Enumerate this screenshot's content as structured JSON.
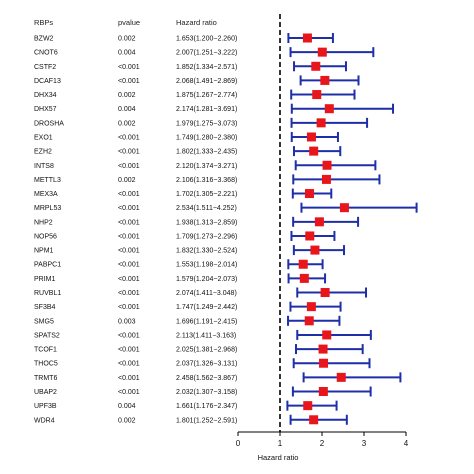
{
  "chart_data": {
    "type": "forest",
    "xlabel": "Hazard ratio",
    "reference_line": 1,
    "xlim": [
      0,
      4
    ],
    "xticks": [
      0,
      1,
      2,
      3,
      4
    ],
    "headers": {
      "rbp": "RBPs",
      "pvalue": "pvalue",
      "hr": "Hazard ratio"
    },
    "colors": {
      "ci": "#1f2fa8",
      "point": "#e8151b",
      "reference": "#000000"
    },
    "rows": [
      {
        "rbp": "BZW2",
        "pvalue": "0.002",
        "hr_text": "1.653(1.200−2.260)",
        "hr": 1.653,
        "lower": 1.2,
        "upper": 2.26
      },
      {
        "rbp": "CNOT6",
        "pvalue": "0.004",
        "hr_text": "2.007(1.251−3.222)",
        "hr": 2.007,
        "lower": 1.251,
        "upper": 3.222
      },
      {
        "rbp": "CSTF2",
        "pvalue": "<0.001",
        "hr_text": "1.852(1.334−2.571)",
        "hr": 1.852,
        "lower": 1.334,
        "upper": 2.571
      },
      {
        "rbp": "DCAF13",
        "pvalue": "<0.001",
        "hr_text": "2.068(1.491−2.869)",
        "hr": 2.068,
        "lower": 1.491,
        "upper": 2.869
      },
      {
        "rbp": "DHX34",
        "pvalue": "0.002",
        "hr_text": "1.875(1.267−2.774)",
        "hr": 1.875,
        "lower": 1.267,
        "upper": 2.774
      },
      {
        "rbp": "DHX57",
        "pvalue": "0.004",
        "hr_text": "2.174(1.281−3.691)",
        "hr": 2.174,
        "lower": 1.281,
        "upper": 3.691
      },
      {
        "rbp": "DROSHA",
        "pvalue": "0.002",
        "hr_text": "1.979(1.275−3.073)",
        "hr": 1.979,
        "lower": 1.275,
        "upper": 3.073
      },
      {
        "rbp": "EXO1",
        "pvalue": "<0.001",
        "hr_text": "1.749(1.280−2.380)",
        "hr": 1.749,
        "lower": 1.28,
        "upper": 2.38
      },
      {
        "rbp": "EZH2",
        "pvalue": "<0.001",
        "hr_text": "1.802(1.333−2.435)",
        "hr": 1.802,
        "lower": 1.333,
        "upper": 2.435
      },
      {
        "rbp": "INTS8",
        "pvalue": "<0.001",
        "hr_text": "2.120(1.374−3.271)",
        "hr": 2.12,
        "lower": 1.374,
        "upper": 3.271
      },
      {
        "rbp": "METTL3",
        "pvalue": "0.002",
        "hr_text": "2.106(1.316−3.368)",
        "hr": 2.106,
        "lower": 1.316,
        "upper": 3.368
      },
      {
        "rbp": "MEX3A",
        "pvalue": "<0.001",
        "hr_text": "1.702(1.305−2.221)",
        "hr": 1.702,
        "lower": 1.305,
        "upper": 2.221
      },
      {
        "rbp": "MRPL53",
        "pvalue": "<0.001",
        "hr_text": "2.534(1.511−4.252)",
        "hr": 2.534,
        "lower": 1.511,
        "upper": 4.252
      },
      {
        "rbp": "NHP2",
        "pvalue": "<0.001",
        "hr_text": "1.938(1.313−2.859)",
        "hr": 1.938,
        "lower": 1.313,
        "upper": 2.859
      },
      {
        "rbp": "NOP56",
        "pvalue": "<0.001",
        "hr_text": "1.709(1.273−2.296)",
        "hr": 1.709,
        "lower": 1.273,
        "upper": 2.296
      },
      {
        "rbp": "NPM1",
        "pvalue": "<0.001",
        "hr_text": "1.832(1.330−2.524)",
        "hr": 1.832,
        "lower": 1.33,
        "upper": 2.524
      },
      {
        "rbp": "PABPC1",
        "pvalue": "<0.001",
        "hr_text": "1.553(1.198−2.014)",
        "hr": 1.553,
        "lower": 1.198,
        "upper": 2.014
      },
      {
        "rbp": "PRIM1",
        "pvalue": "<0.001",
        "hr_text": "1.579(1.204−2.073)",
        "hr": 1.579,
        "lower": 1.204,
        "upper": 2.073
      },
      {
        "rbp": "RUVBL1",
        "pvalue": "<0.001",
        "hr_text": "2.074(1.411−3.048)",
        "hr": 2.074,
        "lower": 1.411,
        "upper": 3.048
      },
      {
        "rbp": "SF3B4",
        "pvalue": "<0.001",
        "hr_text": "1.747(1.249−2.442)",
        "hr": 1.747,
        "lower": 1.249,
        "upper": 2.442
      },
      {
        "rbp": "SMG5",
        "pvalue": "0.003",
        "hr_text": "1.696(1.191−2.415)",
        "hr": 1.696,
        "lower": 1.191,
        "upper": 2.415
      },
      {
        "rbp": "SPATS2",
        "pvalue": "<0.001",
        "hr_text": "2.113(1.411−3.163)",
        "hr": 2.113,
        "lower": 1.411,
        "upper": 3.163
      },
      {
        "rbp": "TCOF1",
        "pvalue": "<0.001",
        "hr_text": "2.025(1.381−2.968)",
        "hr": 2.025,
        "lower": 1.381,
        "upper": 2.968
      },
      {
        "rbp": "THOC5",
        "pvalue": "<0.001",
        "hr_text": "2.037(1.326−3.131)",
        "hr": 2.037,
        "lower": 1.326,
        "upper": 3.131
      },
      {
        "rbp": "TRMT6",
        "pvalue": "<0.001",
        "hr_text": "2.458(1.562−3.867)",
        "hr": 2.458,
        "lower": 1.562,
        "upper": 3.867
      },
      {
        "rbp": "UBAP2",
        "pvalue": "<0.001",
        "hr_text": "2.032(1.307−3.158)",
        "hr": 2.032,
        "lower": 1.307,
        "upper": 3.158
      },
      {
        "rbp": "UPF3B",
        "pvalue": "0.004",
        "hr_text": "1.661(1.176−2.347)",
        "hr": 1.661,
        "lower": 1.176,
        "upper": 2.347
      },
      {
        "rbp": "WDR4",
        "pvalue": "0.002",
        "hr_text": "1.801(1.252−2.591)",
        "hr": 1.801,
        "lower": 1.252,
        "upper": 2.591
      }
    ]
  }
}
